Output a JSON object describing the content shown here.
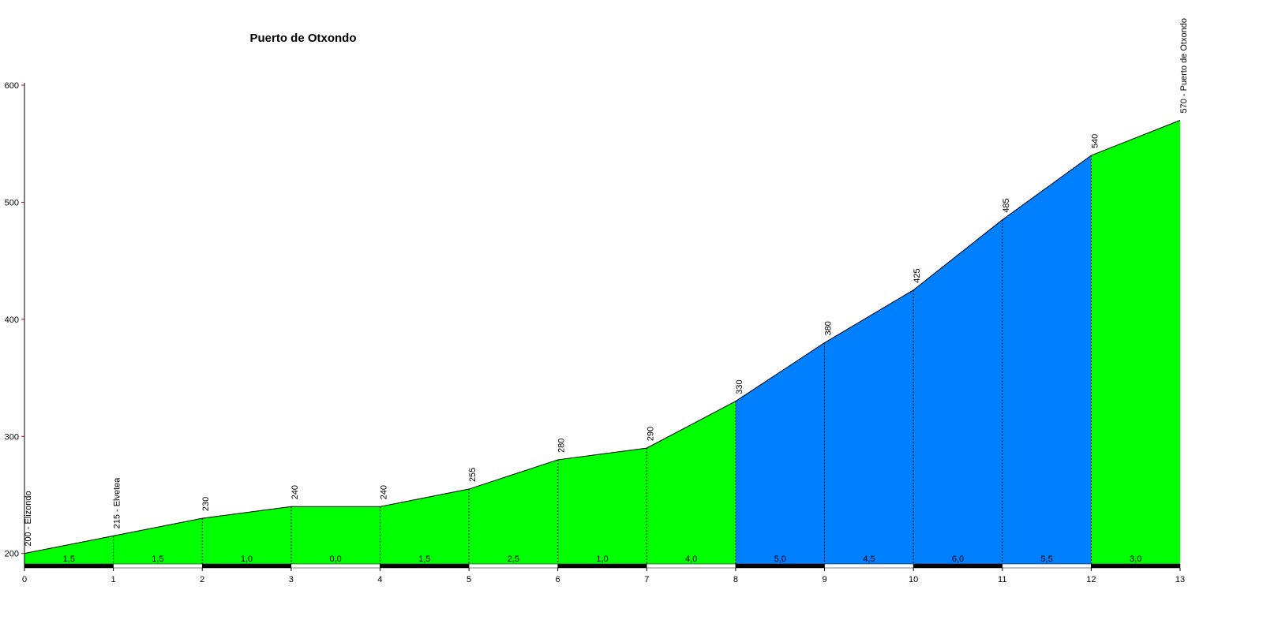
{
  "chart_data": {
    "type": "elevation-profile",
    "title": "Puerto de Otxondo",
    "x": [
      0,
      1,
      2,
      3,
      4,
      5,
      6,
      7,
      8,
      9,
      10,
      11,
      12,
      13
    ],
    "series": [
      {
        "values": [
          200,
          215,
          230,
          240,
          240,
          255,
          280,
          290,
          330,
          380,
          425,
          485,
          540,
          570
        ],
        "value_labels": [
          "200 - Elizondo",
          "215 - Elvetea",
          "230",
          "240",
          "240",
          "255",
          "280",
          "290",
          "330",
          "380",
          "425",
          "485",
          "540",
          "570 - Puerto de Otxondo"
        ]
      }
    ],
    "segments": [
      {
        "label": "1,5",
        "color": "#00ff00"
      },
      {
        "label": "1,5",
        "color": "#00ff00"
      },
      {
        "label": "1,0",
        "color": "#00ff00"
      },
      {
        "label": "0,0",
        "color": "#00ff00"
      },
      {
        "label": "1,5",
        "color": "#00ff00"
      },
      {
        "label": "2,5",
        "color": "#00ff00"
      },
      {
        "label": "1,0",
        "color": "#00ff00"
      },
      {
        "label": "4,0",
        "color": "#00ff00"
      },
      {
        "label": "5,0",
        "color": "#0080ff"
      },
      {
        "label": "4,5",
        "color": "#0080ff"
      },
      {
        "label": "6,0",
        "color": "#0080ff"
      },
      {
        "label": "5,5",
        "color": "#0080ff"
      },
      {
        "label": "3,0",
        "color": "#00ff00"
      }
    ],
    "xlim": [
      0,
      13
    ],
    "xticks": [
      0,
      1,
      2,
      3,
      4,
      5,
      6,
      7,
      8,
      9,
      10,
      11,
      12,
      13
    ],
    "ylim": [
      189,
      600
    ],
    "yticks": [
      200,
      300,
      400,
      500,
      600
    ]
  }
}
